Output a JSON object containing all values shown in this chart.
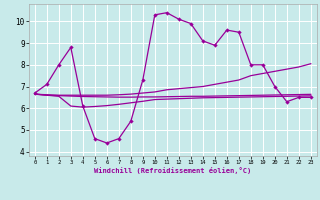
{
  "background_color": "#c8eaea",
  "grid_color": "#ffffff",
  "line_color": "#990099",
  "xlabel": "Windchill (Refroidissement éolien,°C)",
  "xlim": [
    -0.5,
    23.5
  ],
  "ylim": [
    3.8,
    10.8
  ],
  "yticks": [
    4,
    5,
    6,
    7,
    8,
    9,
    10
  ],
  "xticks": [
    0,
    1,
    2,
    3,
    4,
    5,
    6,
    7,
    8,
    9,
    10,
    11,
    12,
    13,
    14,
    15,
    16,
    17,
    18,
    19,
    20,
    21,
    22,
    23
  ],
  "curve1_x": [
    0,
    1,
    2,
    3,
    4,
    5,
    6,
    7,
    8,
    9,
    10,
    11,
    12,
    13,
    14,
    15,
    16,
    17,
    18,
    19,
    20,
    21,
    22,
    23
  ],
  "curve1_y": [
    6.7,
    7.1,
    8.0,
    8.8,
    6.1,
    4.6,
    4.4,
    4.6,
    5.4,
    7.3,
    10.3,
    10.4,
    10.1,
    9.9,
    9.1,
    8.9,
    9.6,
    9.5,
    8.0,
    8.0,
    7.0,
    6.3,
    6.5,
    6.5
  ],
  "curve2_x": [
    0,
    1,
    2,
    3,
    4,
    5,
    6,
    7,
    8,
    9,
    10,
    11,
    12,
    13,
    14,
    15,
    16,
    17,
    18,
    19,
    20,
    21,
    22,
    23
  ],
  "curve2_y": [
    6.65,
    6.62,
    6.6,
    6.6,
    6.6,
    6.6,
    6.6,
    6.62,
    6.65,
    6.7,
    6.75,
    6.85,
    6.9,
    6.95,
    7.0,
    7.1,
    7.2,
    7.3,
    7.5,
    7.6,
    7.7,
    7.8,
    7.9,
    8.05
  ],
  "curve3_x": [
    0,
    1,
    2,
    3,
    4,
    5,
    6,
    7,
    8,
    9,
    10,
    11,
    12,
    13,
    14,
    15,
    16,
    17,
    18,
    19,
    20,
    21,
    22,
    23
  ],
  "curve3_y": [
    6.65,
    6.6,
    6.58,
    6.56,
    6.54,
    6.53,
    6.52,
    6.51,
    6.51,
    6.52,
    6.52,
    6.53,
    6.54,
    6.55,
    6.55,
    6.56,
    6.57,
    6.58,
    6.59,
    6.6,
    6.61,
    6.62,
    6.63,
    6.64
  ],
  "curve4_x": [
    0,
    1,
    2,
    3,
    4,
    5,
    6,
    7,
    8,
    9,
    10,
    11,
    12,
    13,
    14,
    15,
    16,
    17,
    18,
    19,
    20,
    21,
    22,
    23
  ],
  "curve4_y": [
    6.65,
    6.6,
    6.55,
    6.1,
    6.05,
    6.08,
    6.12,
    6.18,
    6.25,
    6.32,
    6.4,
    6.42,
    6.44,
    6.46,
    6.48,
    6.49,
    6.5,
    6.51,
    6.52,
    6.53,
    6.54,
    6.55,
    6.56,
    6.57
  ]
}
